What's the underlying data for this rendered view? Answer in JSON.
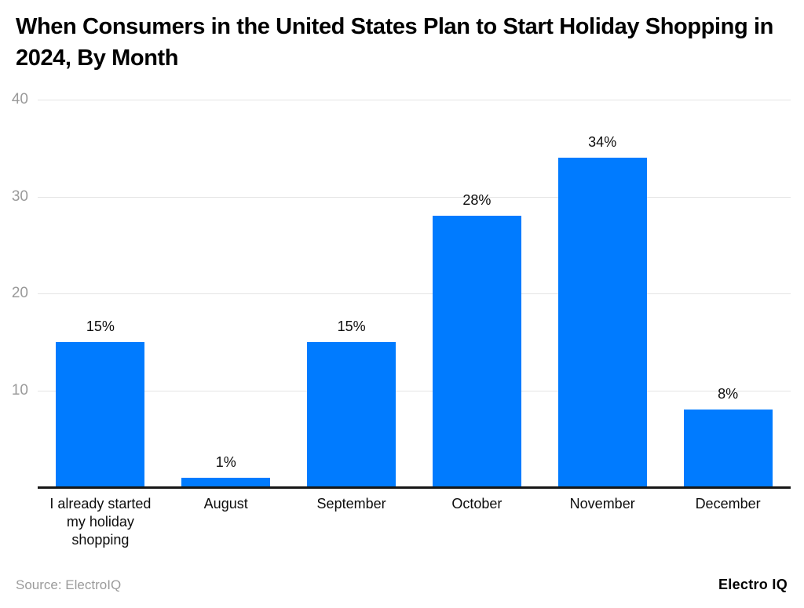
{
  "header": {
    "title": "When Consumers in the United States Plan to Start Holiday Shopping in 2024, By Month"
  },
  "chart_data": {
    "type": "bar",
    "title": "When Consumers in the United States Plan to Start Holiday Shopping in 2024, By Month",
    "categories": [
      "I already started my holiday shopping",
      "August",
      "September",
      "October",
      "November",
      "December"
    ],
    "category_lines": [
      [
        "I already started",
        "my holiday",
        "shopping"
      ],
      [
        "August"
      ],
      [
        "September"
      ],
      [
        "October"
      ],
      [
        "November"
      ],
      [
        "December"
      ]
    ],
    "values": [
      15,
      1,
      15,
      28,
      34,
      8
    ],
    "value_labels": [
      "15%",
      "1%",
      "15%",
      "28%",
      "34%",
      "8%"
    ],
    "xlabel": "",
    "ylabel": "",
    "ylim": [
      0,
      40
    ],
    "yticks": [
      10,
      20,
      30,
      40
    ],
    "grid": true,
    "legend": false,
    "bar_color": "#007BFF"
  },
  "footer": {
    "source": "Source: ElectroIQ",
    "logo": "Electro IQ"
  }
}
